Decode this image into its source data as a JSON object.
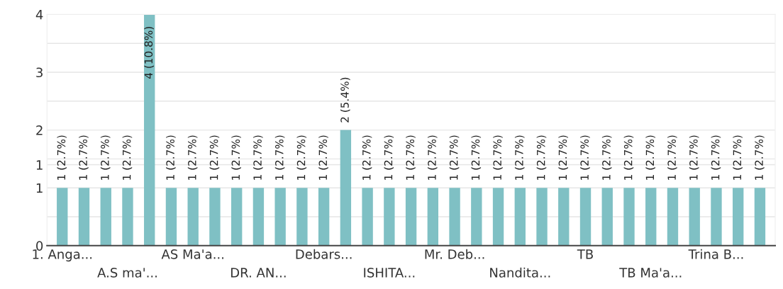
{
  "chart_data": {
    "type": "bar",
    "categories": [
      "1. Anga...",
      null,
      null,
      "A.S ma'...",
      null,
      null,
      "AS Ma'a...",
      null,
      null,
      "DR. AN...",
      null,
      null,
      "Debars...",
      null,
      null,
      "ISHITA...",
      null,
      null,
      "Mr. Deb...",
      null,
      null,
      "Nandita...",
      null,
      null,
      "TB",
      null,
      null,
      "TB Ma'a...",
      null,
      null,
      "Trina B...",
      null,
      null
    ],
    "values": [
      1,
      1,
      1,
      1,
      4,
      1,
      1,
      1,
      1,
      1,
      1,
      1,
      1,
      2,
      1,
      1,
      1,
      1,
      1,
      1,
      1,
      1,
      1,
      1,
      1,
      1,
      1,
      1,
      1,
      1,
      1,
      1,
      1
    ],
    "value_labels": [
      "1 (2.7%)",
      "1 (2.7%)",
      "1 (2.7%)",
      "1 (2.7%)",
      "4 (10.8%)",
      "1 (2.7%)",
      "1 (2.7%)",
      "1 (2.7%)",
      "1 (2.7%)",
      "1 (2.7%)",
      "1 (2.7%)",
      "1 (2.7%)",
      "1 (2.7%)",
      "2 (5.4%)",
      "1 (2.7%)",
      "1 (2.7%)",
      "1 (2.7%)",
      "1 (2.7%)",
      "1 (2.7%)",
      "1 (2.7%)",
      "1 (2.7%)",
      "1 (2.7%)",
      "1 (2.7%)",
      "1 (2.7%)",
      "1 (2.7%)",
      "1 (2.7%)",
      "1 (2.7%)",
      "1 (2.7%)",
      "1 (2.7%)",
      "1 (2.7%)",
      "1 (2.7%)",
      "1 (2.7%)",
      "1 (2.7%)"
    ],
    "color": "#7fc0c4",
    "ylim": [
      0,
      4
    ],
    "yticks": [
      0,
      {
        "value": 0.5,
        "label": null
      },
      1,
      {
        "value": 1.4,
        "label": "1"
      },
      {
        "value": 1.5,
        "label": null
      },
      2,
      {
        "value": 2.5,
        "label": null
      },
      3,
      {
        "value": 3.5,
        "label": null
      },
      4
    ],
    "grid": "y"
  }
}
